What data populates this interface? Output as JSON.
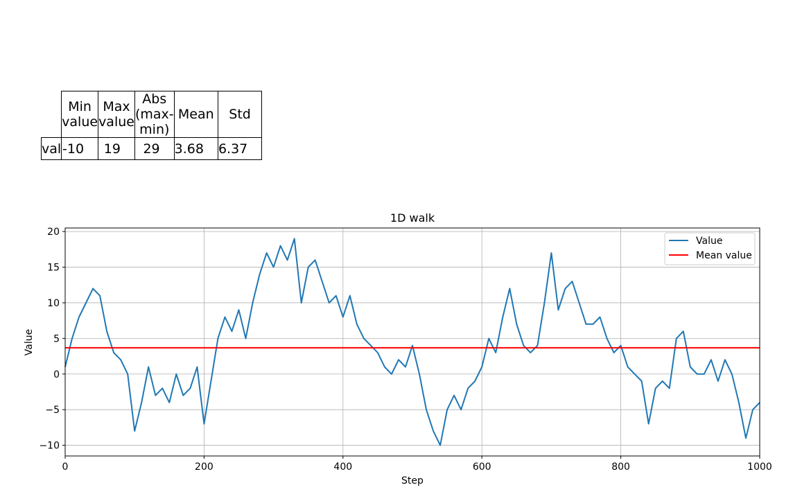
{
  "table": {
    "headers": [
      "Min value",
      "Max value",
      "Abs (max-min)",
      "Mean",
      "Std"
    ],
    "row_label": "val",
    "values": [
      "-10",
      "19",
      "29",
      "3.68",
      "6.37"
    ]
  },
  "chart_data": {
    "type": "line",
    "title": "1D walk",
    "xlabel": "Step",
    "ylabel": "Value",
    "xlim": [
      0,
      1000
    ],
    "ylim": [
      -11.5,
      20.5
    ],
    "xticks": [
      0,
      200,
      400,
      600,
      800,
      1000
    ],
    "yticks": [
      -10,
      -5,
      0,
      5,
      10,
      15,
      20
    ],
    "grid": true,
    "legend_position": "top-right",
    "series": [
      {
        "name": "Value",
        "color": "#1f77b4",
        "x": [
          0,
          10,
          20,
          30,
          40,
          50,
          60,
          70,
          80,
          90,
          100,
          110,
          120,
          130,
          140,
          150,
          160,
          170,
          180,
          190,
          200,
          210,
          220,
          230,
          240,
          250,
          260,
          270,
          280,
          290,
          300,
          310,
          320,
          330,
          340,
          350,
          360,
          370,
          380,
          390,
          400,
          410,
          420,
          430,
          440,
          450,
          460,
          470,
          480,
          490,
          500,
          510,
          520,
          530,
          540,
          550,
          560,
          570,
          580,
          590,
          600,
          610,
          620,
          630,
          640,
          650,
          660,
          670,
          680,
          690,
          700,
          710,
          720,
          730,
          740,
          750,
          760,
          770,
          780,
          790,
          800,
          810,
          820,
          830,
          840,
          850,
          860,
          870,
          880,
          890,
          900,
          910,
          920,
          930,
          940,
          950,
          960,
          970,
          980,
          990,
          1000
        ],
        "y": [
          1,
          5,
          8,
          10,
          12,
          11,
          6,
          3,
          2,
          0,
          -8,
          -4,
          1,
          -3,
          -2,
          -4,
          0,
          -3,
          -2,
          1,
          -7,
          -1,
          5,
          8,
          6,
          9,
          5,
          10,
          14,
          17,
          15,
          18,
          16,
          19,
          10,
          15,
          16,
          13,
          10,
          11,
          8,
          11,
          7,
          5,
          4,
          3,
          1,
          0,
          2,
          1,
          4,
          0,
          -5,
          -8,
          -10,
          -5,
          -3,
          -5,
          -2,
          -1,
          1,
          5,
          3,
          8,
          12,
          7,
          4,
          3,
          4,
          10,
          17,
          9,
          12,
          13,
          10,
          7,
          7,
          8,
          5,
          3,
          4,
          1,
          0,
          -1,
          -7,
          -2,
          -1,
          -2,
          5,
          6,
          1,
          0,
          0,
          2,
          -1,
          2,
          0,
          -4,
          -9,
          -5,
          -4
        ]
      },
      {
        "name": "Mean value",
        "color": "#ff0000",
        "x": [
          0,
          1000
        ],
        "y": [
          3.68,
          3.68
        ]
      }
    ]
  }
}
